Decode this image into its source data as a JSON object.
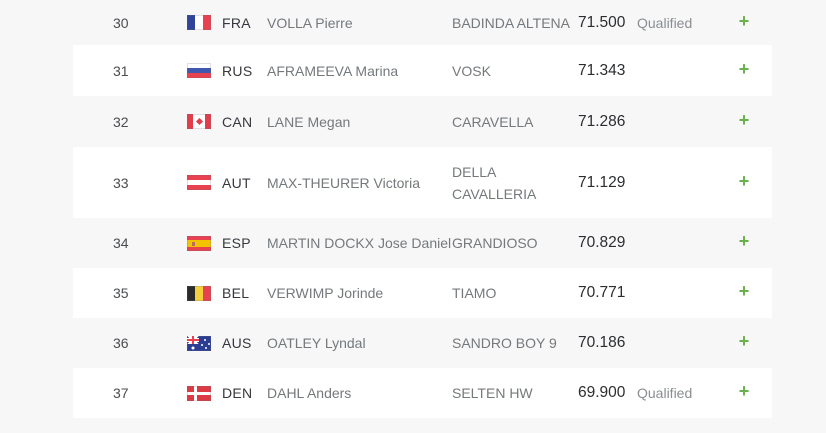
{
  "table": {
    "expand_button_label": "+",
    "qualified_label": "Qualified",
    "colors": {
      "accent_green": "#6ab04c",
      "row_white": "#ffffff",
      "page_background": "#f7f7f8",
      "score_text": "#2b2d30",
      "secondary_text": "#75797c"
    },
    "rows": [
      {
        "rank": "30",
        "country": "FRA",
        "flag": "fra",
        "rider": "VOLLA Pierre",
        "horse": "BADINDA ALTENA",
        "score": "71.500",
        "status": "Qualified"
      },
      {
        "rank": "31",
        "country": "RUS",
        "flag": "rus",
        "rider": "AFRAMEEVA Marina",
        "horse": "VOSK",
        "score": "71.343",
        "status": ""
      },
      {
        "rank": "32",
        "country": "CAN",
        "flag": "can",
        "rider": "LANE Megan",
        "horse": "CARAVELLA",
        "score": "71.286",
        "status": ""
      },
      {
        "rank": "33",
        "country": "AUT",
        "flag": "aut",
        "rider": "MAX-THEURER Victoria",
        "horse": "DELLA CAVALLERIA",
        "score": "71.129",
        "status": ""
      },
      {
        "rank": "34",
        "country": "ESP",
        "flag": "esp",
        "rider": "MARTIN DOCKX Jose Daniel",
        "horse": "GRANDIOSO",
        "score": "70.829",
        "status": ""
      },
      {
        "rank": "35",
        "country": "BEL",
        "flag": "bel",
        "rider": "VERWIMP Jorinde",
        "horse": "TIAMO",
        "score": "70.771",
        "status": ""
      },
      {
        "rank": "36",
        "country": "AUS",
        "flag": "aus",
        "rider": "OATLEY Lyndal",
        "horse": "SANDRO BOY 9",
        "score": "70.186",
        "status": ""
      },
      {
        "rank": "37",
        "country": "DEN",
        "flag": "den",
        "rider": "DAHL Anders",
        "horse": "SELTEN HW",
        "score": "69.900",
        "status": "Qualified"
      }
    ]
  }
}
